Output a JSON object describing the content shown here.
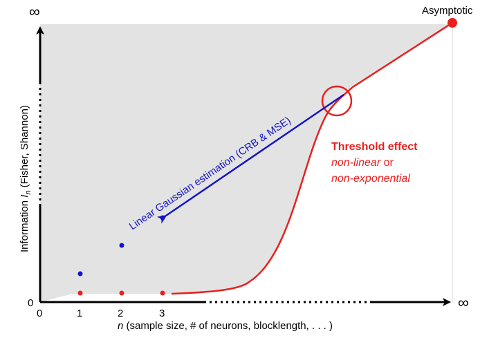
{
  "figure": {
    "top_infinity": "∞",
    "right_infinity": "∞",
    "asymptotic_label": "Asymptotic",
    "y_axis_label_prefix": "Information ",
    "y_axis_label_symbol": "I",
    "y_axis_label_subscript": "n",
    "y_axis_label_suffix": " (Fisher, Shannon)",
    "x_axis_label_symbol": "n",
    "x_axis_label_rest": " (sample size, # of neurons, blocklength, . . . )",
    "origin_y_label": "0",
    "x_ticks": [
      "0",
      "1",
      "2",
      "3"
    ],
    "linear_label": "Linear Gaussian estimation (CRB & MSE)",
    "threshold_title": "Threshold effect",
    "threshold_line2_italic": "non-linear",
    "threshold_line2_rest": " or",
    "threshold_line3_italic": "non-exponential"
  },
  "colors": {
    "region_fill": "#e3e3e3",
    "axis": "#000000",
    "red": "#e8201e",
    "blue": "#1414c8",
    "frame": "#c8c8c8"
  }
}
